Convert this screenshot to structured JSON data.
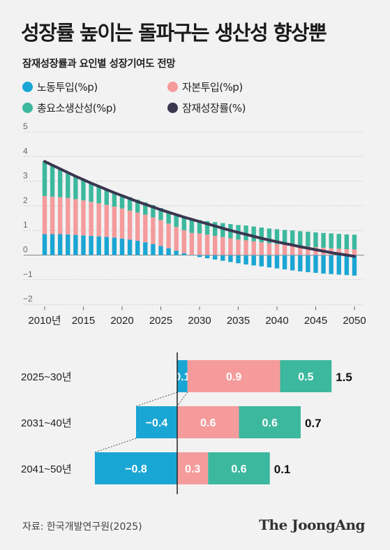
{
  "title": "성장률 높이는 돌파구는 생산성 향상뿐",
  "subtitle": "잠재성장률과 요인별 성장기여도 전망",
  "colors": {
    "labor": "#1aa6d4",
    "capital": "#f59b9c",
    "tfp": "#3cb89e",
    "potential": "#3a3650",
    "background": "#f2f2f2"
  },
  "legend": [
    {
      "label": "노동투입(%p)",
      "color": "#1aa6d4"
    },
    {
      "label": "자본투입(%p)",
      "color": "#f59b9c"
    },
    {
      "label": "총요소생산성(%p)",
      "color": "#3cb89e"
    },
    {
      "label": "잠재성장률(%)",
      "color": "#3a3650"
    }
  ],
  "source": "자료: 한국개발연구원(2025)",
  "logo": "The JoongAng",
  "chart_data": [
    {
      "type": "bar",
      "stacked": true,
      "x": [
        2010,
        2011,
        2012,
        2013,
        2014,
        2015,
        2016,
        2017,
        2018,
        2019,
        2020,
        2021,
        2022,
        2023,
        2024,
        2025,
        2026,
        2027,
        2028,
        2029,
        2030,
        2031,
        2032,
        2033,
        2034,
        2035,
        2036,
        2037,
        2038,
        2039,
        2040,
        2041,
        2042,
        2043,
        2044,
        2045,
        2046,
        2047,
        2048,
        2049,
        2050
      ],
      "x_tick_labels": [
        "2010년",
        "2015",
        "2020",
        "2025",
        "2030",
        "2035",
        "2040",
        "2045",
        "2050"
      ],
      "x_ticks": [
        2010,
        2015,
        2020,
        2025,
        2030,
        2035,
        2040,
        2045,
        2050
      ],
      "y_ticks": [
        -2,
        -1,
        0,
        1,
        2,
        3,
        4,
        5
      ],
      "y_tick_labels": [
        "−2",
        "−1",
        "0",
        "1",
        "2",
        "3",
        "4",
        "5"
      ],
      "ylim": [
        -2,
        5
      ],
      "series": [
        {
          "name": "노동투입(%p)",
          "values": [
            0.85,
            0.85,
            0.85,
            0.84,
            0.82,
            0.8,
            0.78,
            0.76,
            0.74,
            0.71,
            0.67,
            0.63,
            0.58,
            0.52,
            0.45,
            0.37,
            0.28,
            0.18,
            0.08,
            -0.02,
            -0.08,
            -0.13,
            -0.18,
            -0.23,
            -0.28,
            -0.33,
            -0.38,
            -0.42,
            -0.46,
            -0.5,
            -0.54,
            -0.58,
            -0.62,
            -0.66,
            -0.69,
            -0.72,
            -0.75,
            -0.77,
            -0.79,
            -0.81,
            -0.83
          ]
        },
        {
          "name": "자본투입(%p)",
          "values": [
            1.55,
            1.52,
            1.5,
            1.48,
            1.45,
            1.42,
            1.38,
            1.34,
            1.3,
            1.26,
            1.22,
            1.18,
            1.15,
            1.12,
            1.08,
            1.05,
            1.0,
            0.96,
            0.93,
            0.9,
            0.88,
            0.83,
            0.78,
            0.73,
            0.68,
            0.63,
            0.6,
            0.56,
            0.52,
            0.48,
            0.45,
            0.42,
            0.4,
            0.37,
            0.35,
            0.32,
            0.3,
            0.28,
            0.26,
            0.24,
            0.23
          ]
        },
        {
          "name": "총요소생산성(%p)",
          "values": [
            1.4,
            1.25,
            1.12,
            1.0,
            0.92,
            0.84,
            0.76,
            0.7,
            0.64,
            0.6,
            0.56,
            0.54,
            0.52,
            0.5,
            0.5,
            0.49,
            0.5,
            0.51,
            0.52,
            0.53,
            0.54,
            0.55,
            0.56,
            0.57,
            0.58,
            0.59,
            0.6,
            0.6,
            0.6,
            0.6,
            0.6,
            0.6,
            0.6,
            0.6,
            0.6,
            0.6,
            0.6,
            0.6,
            0.6,
            0.6,
            0.6
          ]
        },
        {
          "name": "잠재성장률(%)",
          "type": "line",
          "values": [
            3.8,
            3.65,
            3.5,
            3.35,
            3.2,
            3.06,
            2.92,
            2.79,
            2.66,
            2.53,
            2.41,
            2.29,
            2.17,
            2.06,
            1.95,
            1.84,
            1.74,
            1.64,
            1.54,
            1.45,
            1.36,
            1.27,
            1.18,
            1.09,
            1.0,
            0.92,
            0.84,
            0.76,
            0.68,
            0.61,
            0.54,
            0.47,
            0.41,
            0.34,
            0.28,
            0.22,
            0.16,
            0.1,
            0.05,
            0.0,
            -0.05
          ]
        }
      ]
    },
    {
      "type": "bar",
      "orientation": "horizontal",
      "stacked": true,
      "categories": [
        "2025~30년",
        "2031~40년",
        "2041~50년"
      ],
      "series": [
        {
          "name": "노동투입(%p)",
          "values": [
            0.1,
            -0.4,
            -0.8
          ],
          "labels": [
            "0.1",
            "−0.4",
            "−0.8"
          ]
        },
        {
          "name": "자본투입(%p)",
          "values": [
            0.9,
            0.6,
            0.3
          ],
          "labels": [
            "0.9",
            "0.6",
            "0.3"
          ]
        },
        {
          "name": "총요소생산성(%p)",
          "values": [
            0.5,
            0.6,
            0.6
          ],
          "labels": [
            "0.5",
            "0.6",
            "0.6"
          ]
        }
      ],
      "totals": [
        1.5,
        0.7,
        0.1
      ],
      "total_labels": [
        "1.5",
        "0.7",
        "0.1"
      ]
    }
  ]
}
